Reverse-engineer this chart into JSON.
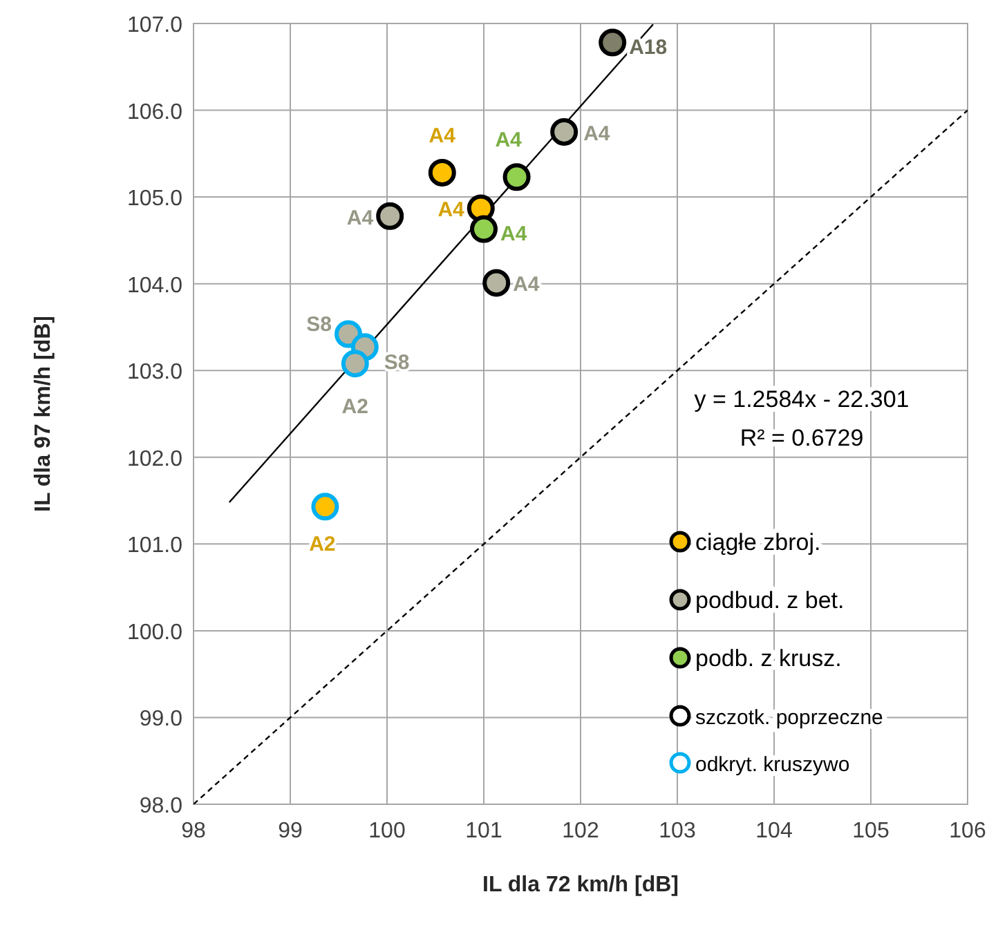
{
  "chart_data": {
    "type": "scatter",
    "xlabel": "IL dla 72 km/h [dB]",
    "ylabel": "IL dla 97 km/h [dB]",
    "xlim": [
      98,
      106
    ],
    "xticks": [
      98,
      99,
      100,
      101,
      102,
      103,
      104,
      105,
      106
    ],
    "ylim": [
      98,
      107
    ],
    "yticks": [
      {
        "value": 98,
        "label": "98.0"
      },
      {
        "value": 99,
        "label": "99.0"
      },
      {
        "value": 100,
        "label": "100.0"
      },
      {
        "value": 101,
        "label": "101.0"
      },
      {
        "value": 102,
        "label": "102.0"
      },
      {
        "value": 103,
        "label": "103.0"
      },
      {
        "value": 104,
        "label": "104.0"
      },
      {
        "value": 105,
        "label": "105.0"
      },
      {
        "value": 106,
        "label": "106.0"
      },
      {
        "value": 107,
        "label": "107.0"
      }
    ],
    "grid": true,
    "legend": "bottom right",
    "marker": "circle",
    "annotations": [
      "y = 1.2584x - 22.301",
      "R² = 0.6729"
    ],
    "series": [
      {
        "name": "ciągłe zbroj.",
        "color": "#ffc000",
        "x": [
          100.57,
          100.97,
          99.36
        ],
        "values": [
          105.28,
          104.87,
          101.43
        ],
        "colors": [
          "#000000",
          "#000000",
          "#00b0f0"
        ],
        "value_labels": [
          "A4",
          "A4",
          "A2"
        ]
      },
      {
        "name": "podbud. z bet.",
        "color": "#b5b4a0",
        "x": [
          101.83,
          100.03,
          101.13,
          99.6,
          99.77,
          99.67
        ],
        "values": [
          105.75,
          104.78,
          104.01,
          103.42,
          103.27,
          103.08
        ],
        "colors": [
          "#000000",
          "#000000",
          "#000000",
          "#00b0f0",
          "#00b0f0",
          "#00b0f0"
        ],
        "value_labels": [
          "A4",
          "A4",
          "A4",
          "S8",
          "S8",
          "A2"
        ]
      },
      {
        "name": "podb. z krusz.",
        "color": "#92d050",
        "x": [
          101.34,
          101.0
        ],
        "values": [
          105.23,
          104.63
        ],
        "colors": [
          "#000000",
          "#000000"
        ],
        "value_labels": [
          "A4",
          "A4"
        ]
      },
      {
        "name": "szczotk. poprzeczne",
        "color": "#000000",
        "marker": "none"
      },
      {
        "name": "odkryt. kruszywo",
        "color": "#00b0f0",
        "marker": "none"
      },
      {
        "type": "line",
        "color": "#000000",
        "x": [
          98.37,
          102.75
        ],
        "values": [
          101.48,
          106.99
        ],
        "marker": "none",
        "line_style": "solid"
      },
      {
        "type": "line",
        "color": "#000000",
        "x": [
          98,
          106
        ],
        "values": [
          98,
          106
        ],
        "marker": "none",
        "line_style": "dashed"
      },
      {
        "color": "#7f7f6a",
        "x": [
          102.33
        ],
        "values": [
          106.78
        ],
        "colors": [
          "#000000"
        ],
        "value_labels": [
          "A18"
        ]
      }
    ]
  }
}
